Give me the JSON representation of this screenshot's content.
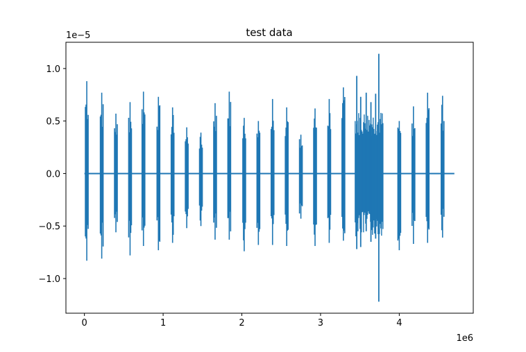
{
  "chart_data": {
    "type": "line",
    "title": "test data",
    "xlabel": "",
    "ylabel": "",
    "x_offset_text": "1e6",
    "y_offset_text": "1e−5",
    "xlim": [
      -0.235,
      4.94
    ],
    "ylim": [
      -1.33,
      1.25
    ],
    "x_ticks": [
      0,
      1,
      2,
      3,
      4
    ],
    "x_tick_labels": [
      "0",
      "1",
      "2",
      "3",
      "4"
    ],
    "y_ticks": [
      -1.0,
      -0.5,
      0.0,
      0.5,
      1.0
    ],
    "y_tick_labels": [
      "−1.0",
      "−0.5",
      "0.0",
      "0.5",
      "1.0"
    ],
    "grid": false,
    "series": [
      {
        "color": "#1f77b4",
        "baseline_x": [
          0.0,
          4.7
        ],
        "baseline_y": 0.0,
        "bursts": [
          {
            "x": 0.03,
            "max": 0.88,
            "min": -0.83
          },
          {
            "x": 0.22,
            "max": 0.77,
            "min": -0.81
          },
          {
            "x": 0.4,
            "max": 0.57,
            "min": -0.56
          },
          {
            "x": 0.58,
            "max": 0.68,
            "min": -0.78
          },
          {
            "x": 0.75,
            "max": 0.78,
            "min": -0.69
          },
          {
            "x": 0.94,
            "max": 0.73,
            "min": -0.73
          },
          {
            "x": 1.12,
            "max": 0.63,
            "min": -0.66
          },
          {
            "x": 1.3,
            "max": 0.44,
            "min": -0.52
          },
          {
            "x": 1.48,
            "max": 0.39,
            "min": -0.5
          },
          {
            "x": 1.66,
            "max": 0.67,
            "min": -0.63
          },
          {
            "x": 1.84,
            "max": 0.78,
            "min": -0.63
          },
          {
            "x": 2.03,
            "max": 0.53,
            "min": -0.74
          },
          {
            "x": 2.21,
            "max": 0.5,
            "min": -0.68
          },
          {
            "x": 2.39,
            "max": 0.71,
            "min": -0.68
          },
          {
            "x": 2.57,
            "max": 0.63,
            "min": -0.69
          },
          {
            "x": 2.75,
            "max": 0.37,
            "min": -0.43
          },
          {
            "x": 2.93,
            "max": 0.62,
            "min": -0.69
          },
          {
            "x": 3.11,
            "max": 0.71,
            "min": -0.66
          },
          {
            "x": 3.29,
            "max": 0.82,
            "min": -0.64
          },
          {
            "x": 4.0,
            "max": 0.5,
            "min": -0.73
          },
          {
            "x": 4.18,
            "max": 0.64,
            "min": -0.67
          },
          {
            "x": 4.36,
            "max": 0.77,
            "min": -0.66
          },
          {
            "x": 4.55,
            "max": 0.74,
            "min": -0.61
          }
        ],
        "dense_region": {
          "x_start": 3.44,
          "x_end": 3.8,
          "typical_max": 0.6,
          "typical_min": -0.6,
          "spikes": [
            {
              "x": 3.46,
              "max": 0.93,
              "min": -0.72
            },
            {
              "x": 3.51,
              "max": 0.73,
              "min": -0.7
            },
            {
              "x": 3.58,
              "max": 0.77,
              "min": -0.55
            },
            {
              "x": 3.64,
              "max": 0.68,
              "min": -0.65
            },
            {
              "x": 3.7,
              "max": 0.76,
              "min": -0.62
            },
            {
              "x": 3.74,
              "max": 1.14,
              "min": -1.22
            }
          ]
        }
      }
    ]
  }
}
